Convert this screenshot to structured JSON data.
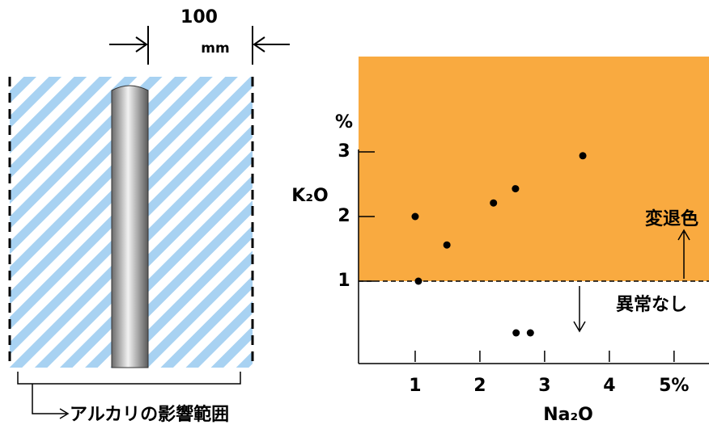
{
  "diagram": {
    "dimension_value": "100",
    "dimension_unit": "mm",
    "range_label": "アルカリの影響範囲"
  },
  "chart_data": {
    "type": "scatter",
    "x_label": "Na₂O",
    "y_label": "K₂O",
    "y_unit": "%",
    "x": [
      1.0,
      1.05,
      1.49,
      2.21,
      2.55,
      3.59,
      2.56,
      2.78
    ],
    "values": [
      2.0,
      1.0,
      1.56,
      2.21,
      2.43,
      2.94,
      0.2,
      0.2
    ],
    "color": "#000000",
    "xlim": [
      0.125,
      5.54
    ],
    "ylim": [
      -0.275,
      4.475
    ],
    "xticks": [
      1,
      2,
      3,
      4,
      {
        "value": 5,
        "label": "5%"
      }
    ],
    "yticks": [
      1,
      2,
      3
    ],
    "threshold": 1,
    "region_color": "#f9aa40",
    "region_above_label": "変退色",
    "region_below_label": "異常なし"
  }
}
